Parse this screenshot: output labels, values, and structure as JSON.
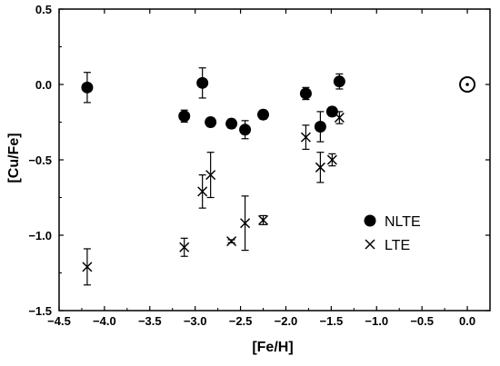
{
  "chart_data": {
    "type": "scatter",
    "xlabel": "[Fe/H]",
    "ylabel": "[Cu/Fe]",
    "xlim": [
      -4.5,
      0.25
    ],
    "ylim": [
      -1.5,
      0.5
    ],
    "xticks": [
      -4.5,
      -4.0,
      -3.5,
      -3.0,
      -2.5,
      -2.0,
      -1.5,
      -1.0,
      -0.5,
      0.0
    ],
    "xtick_labels": [
      "−4.5",
      "−4.0",
      "−3.5",
      "−3.0",
      "−2.5",
      "−2.0",
      "−1.5",
      "−1.0",
      "−0.5",
      "0.0"
    ],
    "yticks": [
      0.5,
      0.0,
      -0.5,
      -1.0,
      -1.5
    ],
    "ytick_labels": [
      "0.5",
      "0.0",
      "−0.5",
      "−1.0",
      "−1.5"
    ],
    "legend_position": "right",
    "series": [
      {
        "name": "NLTE",
        "marker": "filled-circle",
        "points": [
          {
            "x": -4.19,
            "y": -0.02,
            "err": 0.1
          },
          {
            "x": -3.12,
            "y": -0.21,
            "err": 0.04
          },
          {
            "x": -2.92,
            "y": 0.01,
            "err": 0.1
          },
          {
            "x": -2.83,
            "y": -0.25,
            "err": 0.03
          },
          {
            "x": -2.6,
            "y": -0.26,
            "err": 0.03
          },
          {
            "x": -2.45,
            "y": -0.3,
            "err": 0.06
          },
          {
            "x": -2.25,
            "y": -0.2,
            "err": 0.03
          },
          {
            "x": -1.78,
            "y": -0.06,
            "err": 0.04
          },
          {
            "x": -1.62,
            "y": -0.28,
            "err": 0.1
          },
          {
            "x": -1.49,
            "y": -0.18,
            "err": 0.03
          },
          {
            "x": -1.41,
            "y": 0.02,
            "err": 0.05
          }
        ]
      },
      {
        "name": "LTE",
        "marker": "cross",
        "points": [
          {
            "x": -4.19,
            "y": -1.21,
            "err": 0.12
          },
          {
            "x": -3.12,
            "y": -1.08,
            "err": 0.06
          },
          {
            "x": -2.92,
            "y": -0.71,
            "err": 0.11
          },
          {
            "x": -2.83,
            "y": -0.6,
            "err": 0.15
          },
          {
            "x": -2.6,
            "y": -1.04,
            "err": 0.01
          },
          {
            "x": -2.45,
            "y": -0.92,
            "err": 0.18
          },
          {
            "x": -2.25,
            "y": -0.9,
            "err": 0.03
          },
          {
            "x": -1.78,
            "y": -0.35,
            "err": 0.08
          },
          {
            "x": -1.62,
            "y": -0.55,
            "err": 0.1
          },
          {
            "x": -1.49,
            "y": -0.5,
            "err": 0.04
          },
          {
            "x": -1.41,
            "y": -0.22,
            "err": 0.04
          }
        ]
      }
    ],
    "annotations": [
      {
        "symbol": "sun",
        "x": 0.0,
        "y": 0.0
      }
    ]
  }
}
